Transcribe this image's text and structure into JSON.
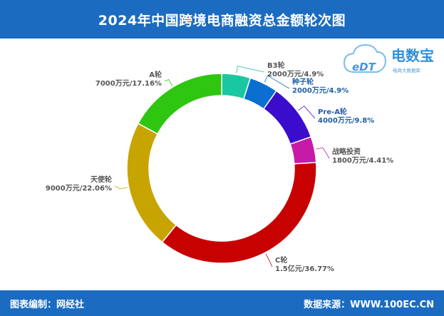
{
  "header": {
    "title": "2024年中国跨境电商融资总金额轮次图"
  },
  "footer": {
    "left": "图表编制：网经社",
    "right": "数据来源：WWW.100EC.CN"
  },
  "logo": {
    "letters": "eDT",
    "name": "电数宝",
    "subtitle": "电商大数据库"
  },
  "colors": {
    "header": "#1b6cc1",
    "label_text": "#555555",
    "label_text_alt": "#1f5fa8"
  },
  "chart_data": {
    "type": "pie",
    "style": "donut",
    "unit": "万元",
    "slices": [
      {
        "name": "B3轮",
        "value": 2000,
        "label": "2000万元/4.9%",
        "percent": 4.9,
        "color": "#19c8a0"
      },
      {
        "name": "种子轮",
        "value": 2000,
        "label": "2000万元/4.9%",
        "percent": 4.9,
        "color": "#0a6fd0"
      },
      {
        "name": "Pre-A轮",
        "value": 4000,
        "label": "4000万元/9.8%",
        "percent": 9.8,
        "color": "#3a0ccc"
      },
      {
        "name": "战略投资",
        "value": 1800,
        "label": "1800万元/4.41%",
        "percent": 4.41,
        "color": "#c71aa7"
      },
      {
        "name": "C轮",
        "value": 15000,
        "label": "1.5亿元/36.77%",
        "percent": 36.77,
        "color": "#c70000"
      },
      {
        "name": "天使轮",
        "value": 9000,
        "label": "9000万元/22.06%",
        "percent": 22.06,
        "color": "#c8a400"
      },
      {
        "name": "A轮",
        "value": 7000,
        "label": "7000万元/17.16%",
        "percent": 17.16,
        "color": "#2ec610"
      }
    ]
  }
}
